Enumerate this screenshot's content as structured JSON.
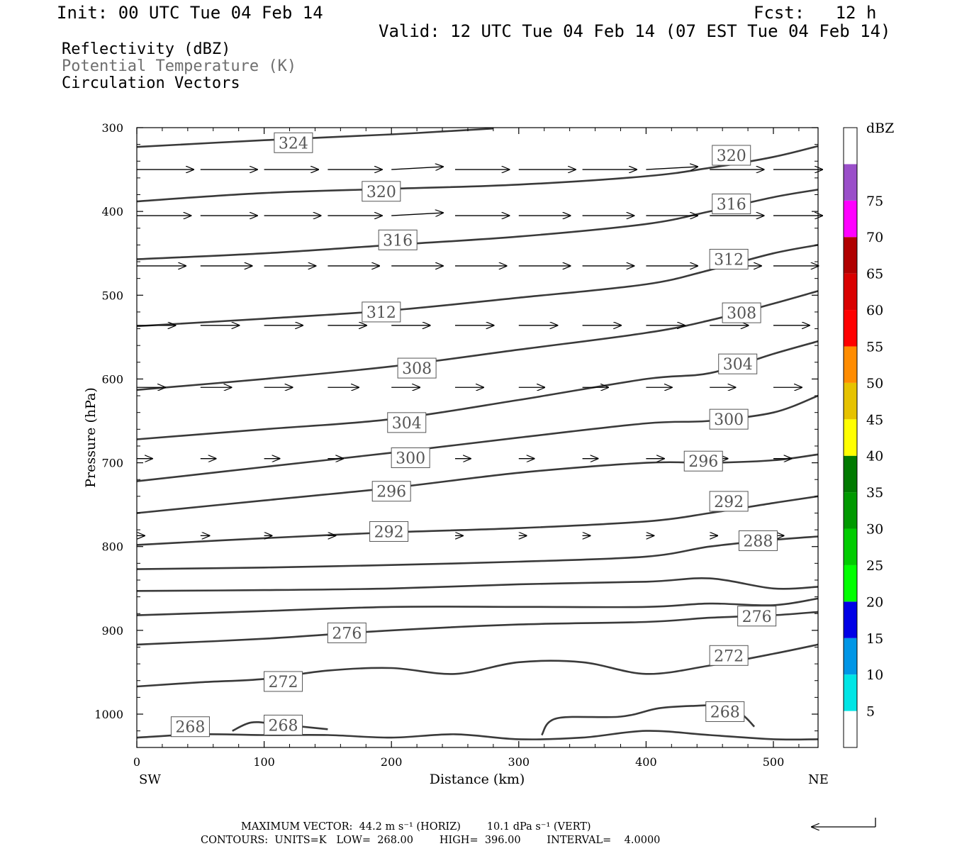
{
  "header": {
    "init": "Init: 00 UTC Tue 04 Feb 14",
    "fcst": "Fcst:   12 h",
    "valid": "Valid: 12 UTC Tue 04 Feb 14 (07 EST Tue 04 Feb 14)"
  },
  "legend": {
    "line1": "Reflectivity (dBZ)",
    "line2": "Potential Temperature (K)",
    "line3": "Circulation Vectors"
  },
  "footer": {
    "line1": "MAXIMUM VECTOR:  44.2 m s⁻¹ (HORIZ)        10.1 dPa s⁻¹ (VERT)",
    "line2": "CONTOURS:  UNITS=K   LOW=  268.00        HIGH=  396.00        INTERVAL=    4.0000"
  },
  "colors": {
    "contour": "#3a3a3a",
    "potential_temp_label": "#6e6e6e"
  },
  "chart_data": {
    "type": "line",
    "xlabel": "Distance (km)",
    "ylabel": "Pressure (hPa)",
    "x_left_label": "SW",
    "x_right_label": "NE",
    "xlim": [
      0,
      535
    ],
    "ylim": [
      300,
      1030
    ],
    "y_scale": "linear-inverted",
    "xticks": [
      0,
      100,
      200,
      300,
      400,
      500
    ],
    "yticks": [
      300,
      400,
      500,
      600,
      700,
      800,
      900,
      1000
    ],
    "colorbar": {
      "unit": "dBZ",
      "ticks": [
        5,
        10,
        15,
        20,
        25,
        30,
        35,
        40,
        45,
        50,
        55,
        60,
        65,
        70,
        75
      ],
      "colors": [
        "#ffffff",
        "#00e5e5",
        "#0096e6",
        "#0000e6",
        "#00ff00",
        "#00cc00",
        "#009900",
        "#007a00",
        "#ffff00",
        "#e6c200",
        "#ff8c00",
        "#ff0000",
        "#d90000",
        "#b00000",
        "#ff00ff",
        "#9a4fc9",
        "#ffffff"
      ]
    },
    "contours": [
      {
        "theta": 324,
        "x": [
          0,
          100,
          200,
          280
        ],
        "p": [
          323,
          315,
          308,
          301
        ]
      },
      {
        "theta": 320,
        "x": [
          0,
          100,
          200,
          300,
          400,
          450,
          500,
          535
        ],
        "p": [
          388,
          378,
          373,
          368,
          358,
          348,
          335,
          322
        ]
      },
      {
        "theta": 316,
        "x": [
          0,
          100,
          200,
          300,
          400,
          450,
          500,
          535
        ],
        "p": [
          457,
          450,
          440,
          430,
          415,
          400,
          383,
          374
        ]
      },
      {
        "theta": 312,
        "x": [
          0,
          100,
          200,
          300,
          400,
          450,
          500,
          535
        ],
        "p": [
          537,
          528,
          518,
          503,
          487,
          470,
          450,
          440
        ]
      },
      {
        "theta": 308,
        "x": [
          0,
          100,
          200,
          300,
          400,
          450,
          500,
          535
        ],
        "p": [
          613,
          600,
          585,
          565,
          545,
          530,
          510,
          495
        ]
      },
      {
        "theta": 304,
        "x": [
          0,
          100,
          200,
          300,
          400,
          450,
          500,
          535
        ],
        "p": [
          672,
          660,
          648,
          625,
          600,
          593,
          570,
          555
        ]
      },
      {
        "theta": 300,
        "x": [
          0,
          100,
          200,
          300,
          400,
          450,
          500,
          535
        ],
        "p": [
          722,
          705,
          688,
          670,
          653,
          650,
          640,
          620
        ]
      },
      {
        "theta": 296,
        "x": [
          0,
          100,
          200,
          300,
          400,
          450,
          500,
          535
        ],
        "p": [
          760,
          745,
          730,
          712,
          700,
          700,
          697,
          690
        ]
      },
      {
        "theta": 292,
        "x": [
          0,
          100,
          200,
          300,
          400,
          450,
          500,
          535
        ],
        "p": [
          798,
          790,
          783,
          778,
          770,
          760,
          748,
          740
        ]
      },
      {
        "theta": 288,
        "x": [
          0,
          100,
          200,
          300,
          400,
          450,
          500,
          535
        ],
        "p": [
          827,
          825,
          822,
          818,
          812,
          800,
          792,
          788
        ]
      },
      {
        "theta": 284,
        "x": [
          0,
          100,
          200,
          300,
          400,
          450,
          500,
          535
        ],
        "p": [
          853,
          852,
          850,
          845,
          842,
          838,
          850,
          848
        ]
      },
      {
        "theta": 280,
        "x": [
          0,
          100,
          200,
          300,
          400,
          450,
          500,
          535
        ],
        "p": [
          882,
          877,
          872,
          872,
          872,
          868,
          870,
          862
        ]
      },
      {
        "theta": 276,
        "x": [
          0,
          100,
          200,
          300,
          400,
          450,
          500,
          535
        ],
        "p": [
          917,
          910,
          900,
          893,
          890,
          885,
          882,
          878
        ]
      },
      {
        "theta": 272,
        "x": [
          0,
          50,
          100,
          150,
          200,
          250,
          300,
          350,
          400,
          450,
          500,
          535
        ],
        "p": [
          967,
          962,
          958,
          948,
          945,
          952,
          938,
          938,
          952,
          942,
          928,
          917
        ]
      },
      {
        "theta": 268,
        "x": [
          0,
          50,
          100,
          150,
          200,
          250,
          300,
          350,
          400,
          450,
          500,
          535
        ],
        "p": [
          1028,
          1024,
          1025,
          1025,
          1028,
          1024,
          1030,
          1028,
          1020,
          1025,
          1030,
          1030
        ]
      },
      {
        "theta": 268,
        "x": [
          75,
          90,
          110,
          150
        ],
        "p": [
          1020,
          1010,
          1012,
          1018
        ]
      },
      {
        "theta": 268,
        "x": [
          318,
          330,
          380,
          410,
          440,
          460,
          475,
          485
        ],
        "p": [
          1025,
          1005,
          1003,
          993,
          990,
          990,
          1000,
          1015
        ]
      }
    ],
    "contour_labels": [
      {
        "theta": "324",
        "x": 123,
        "p": 318
      },
      {
        "theta": "320",
        "x": 192,
        "p": 376
      },
      {
        "theta": "320",
        "x": 467,
        "p": 333
      },
      {
        "theta": "316",
        "x": 205,
        "p": 434
      },
      {
        "theta": "316",
        "x": 467,
        "p": 391
      },
      {
        "theta": "312",
        "x": 192,
        "p": 520
      },
      {
        "theta": "312",
        "x": 465,
        "p": 457
      },
      {
        "theta": "308",
        "x": 220,
        "p": 587
      },
      {
        "theta": "308",
        "x": 475,
        "p": 521
      },
      {
        "theta": "304",
        "x": 212,
        "p": 652
      },
      {
        "theta": "304",
        "x": 472,
        "p": 582
      },
      {
        "theta": "300",
        "x": 215,
        "p": 694
      },
      {
        "theta": "300",
        "x": 465,
        "p": 648
      },
      {
        "theta": "296",
        "x": 200,
        "p": 734
      },
      {
        "theta": "296",
        "x": 445,
        "p": 698
      },
      {
        "theta": "292",
        "x": 198,
        "p": 782
      },
      {
        "theta": "292",
        "x": 465,
        "p": 746
      },
      {
        "theta": "288",
        "x": 488,
        "p": 793
      },
      {
        "theta": "276",
        "x": 165,
        "p": 903
      },
      {
        "theta": "276",
        "x": 487,
        "p": 883
      },
      {
        "theta": "272",
        "x": 115,
        "p": 961
      },
      {
        "theta": "272",
        "x": 465,
        "p": 930
      },
      {
        "theta": "268",
        "x": 42,
        "p": 1015
      },
      {
        "theta": "268",
        "x": 115,
        "p": 1013
      },
      {
        "theta": "268",
        "x": 462,
        "p": 997
      }
    ],
    "vectors": [
      {
        "p": 350,
        "x": [
          0,
          50,
          100,
          150,
          200,
          250,
          300,
          350,
          400,
          450,
          500
        ],
        "u": [
          44,
          44,
          42,
          42,
          40,
          42,
          44,
          42,
          40,
          42,
          38
        ],
        "v": [
          0,
          0,
          0,
          0,
          -1,
          0,
          0,
          0,
          -1,
          0,
          0
        ]
      },
      {
        "p": 405,
        "x": [
          0,
          50,
          100,
          150,
          200,
          250,
          300,
          350,
          400,
          450,
          500
        ],
        "u": [
          42,
          44,
          44,
          42,
          40,
          42,
          40,
          40,
          40,
          42,
          38
        ],
        "v": [
          0,
          0,
          0,
          0,
          -1,
          0,
          0,
          0,
          0,
          0,
          0
        ]
      },
      {
        "p": 465,
        "x": [
          0,
          50,
          100,
          150,
          200,
          250,
          300,
          350,
          400,
          450,
          500
        ],
        "u": [
          38,
          40,
          40,
          40,
          40,
          40,
          40,
          40,
          40,
          40,
          35
        ],
        "v": [
          0,
          0,
          0,
          0,
          0,
          0,
          0,
          0,
          0,
          0,
          0
        ]
      },
      {
        "p": 536,
        "x": [
          0,
          50,
          100,
          150,
          200,
          250,
          300,
          350,
          400,
          450,
          500
        ],
        "u": [
          30,
          30,
          30,
          30,
          30,
          30,
          30,
          30,
          30,
          30,
          28
        ],
        "v": [
          0,
          0,
          0,
          0,
          0,
          0,
          0,
          0,
          0,
          0,
          0
        ]
      },
      {
        "p": 610,
        "x": [
          0,
          50,
          100,
          150,
          200,
          250,
          300,
          350,
          400,
          450,
          500
        ],
        "u": [
          22,
          24,
          22,
          24,
          22,
          22,
          20,
          20,
          20,
          20,
          22
        ],
        "v": [
          0,
          0,
          0,
          0,
          0,
          0,
          0,
          0,
          0,
          0,
          0
        ]
      },
      {
        "p": 695,
        "x": [
          0,
          50,
          100,
          150,
          200,
          250,
          300,
          350,
          400,
          450,
          500
        ],
        "u": [
          12,
          12,
          12,
          12,
          12,
          12,
          12,
          12,
          14,
          14,
          14
        ],
        "v": [
          0,
          0,
          0,
          0,
          0,
          0,
          0,
          0,
          0,
          0,
          0
        ]
      },
      {
        "p": 787,
        "x": [
          0,
          50,
          100,
          150,
          200,
          250,
          300,
          350,
          400,
          450,
          500
        ],
        "u": [
          6,
          7,
          6,
          6,
          6,
          6,
          6,
          6,
          6,
          6,
          8
        ],
        "v": [
          0,
          0,
          0,
          0,
          0,
          0,
          0,
          0,
          0,
          0,
          0
        ]
      }
    ]
  }
}
